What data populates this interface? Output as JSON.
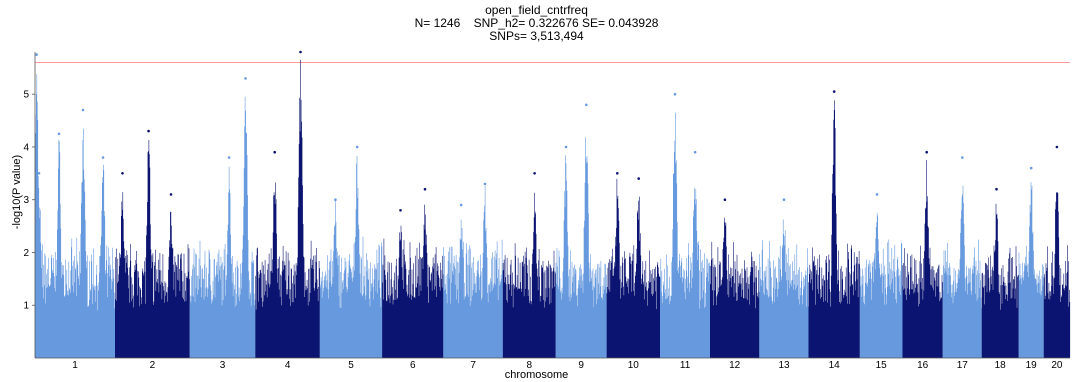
{
  "title": {
    "line1": "open_field_cntrfreq",
    "line2": "N= 1246    SNP_h2= 0.322676 SE= 0.043928",
    "line3": "SNPs= 3,513,494"
  },
  "colors": {
    "light": "#6699dd",
    "dark": "#0b1470",
    "threshold": "#ff9999"
  },
  "chart_data": {
    "type": "scatter",
    "subtype": "manhattan",
    "xlabel": "chromosome",
    "ylabel": "-log10(P value)",
    "ylim": [
      0,
      5.8
    ],
    "yticks": [
      1,
      2,
      3,
      4,
      5
    ],
    "threshold": 5.6,
    "grid": false,
    "legend": "none",
    "chromosomes": [
      {
        "label": "1",
        "size": 195,
        "color": "light",
        "peaks": [
          [
            0.02,
            5.75
          ],
          [
            0.05,
            3.5
          ],
          [
            0.3,
            4.25
          ],
          [
            0.6,
            4.7
          ],
          [
            0.85,
            3.8
          ]
        ]
      },
      {
        "label": "2",
        "size": 182,
        "color": "dark",
        "peaks": [
          [
            0.1,
            3.5
          ],
          [
            0.45,
            4.3
          ],
          [
            0.75,
            3.1
          ]
        ]
      },
      {
        "label": "",
        "size": 0,
        "color": "dark",
        "peaks": []
      },
      {
        "label": "3",
        "size": 160,
        "color": "light",
        "peaks": [
          [
            0.6,
            3.8
          ],
          [
            0.85,
            5.3
          ]
        ]
      },
      {
        "label": "4",
        "size": 157,
        "color": "dark",
        "peaks": [
          [
            0.3,
            3.9
          ],
          [
            0.7,
            5.8
          ]
        ]
      },
      {
        "label": "5",
        "size": 152,
        "color": "light",
        "peaks": [
          [
            0.25,
            3.0
          ],
          [
            0.6,
            4.0
          ]
        ]
      },
      {
        "label": "6",
        "size": 149,
        "color": "dark",
        "peaks": [
          [
            0.3,
            2.8
          ],
          [
            0.7,
            3.2
          ]
        ]
      },
      {
        "label": "7",
        "size": 145,
        "color": "light",
        "peaks": [
          [
            0.3,
            2.9
          ],
          [
            0.7,
            3.3
          ]
        ]
      },
      {
        "label": "8",
        "size": 129,
        "color": "dark",
        "peaks": [
          [
            0.6,
            3.5
          ]
        ]
      },
      {
        "label": "9",
        "size": 124,
        "color": "light",
        "peaks": [
          [
            0.2,
            4.0
          ],
          [
            0.6,
            4.8
          ]
        ]
      },
      {
        "label": "10",
        "size": 130,
        "color": "dark",
        "peaks": [
          [
            0.2,
            3.5
          ],
          [
            0.6,
            3.4
          ]
        ]
      },
      {
        "label": "11",
        "size": 122,
        "color": "light",
        "peaks": [
          [
            0.3,
            5.0
          ],
          [
            0.7,
            3.9
          ]
        ]
      },
      {
        "label": "12",
        "size": 120,
        "color": "dark",
        "peaks": [
          [
            0.3,
            3.0
          ]
        ]
      },
      {
        "label": "13",
        "size": 120,
        "color": "light",
        "peaks": [
          [
            0.5,
            3.0
          ]
        ]
      },
      {
        "label": "14",
        "size": 125,
        "color": "dark",
        "peaks": [
          [
            0.5,
            5.05
          ]
        ]
      },
      {
        "label": "15",
        "size": 104,
        "color": "light",
        "peaks": [
          [
            0.4,
            3.1
          ]
        ]
      },
      {
        "label": "16",
        "size": 98,
        "color": "dark",
        "peaks": [
          [
            0.6,
            3.9
          ]
        ]
      },
      {
        "label": "17",
        "size": 95,
        "color": "light",
        "peaks": [
          [
            0.5,
            3.8
          ]
        ]
      },
      {
        "label": "18",
        "size": 90,
        "color": "dark",
        "peaks": [
          [
            0.4,
            3.2
          ]
        ]
      },
      {
        "label": "19",
        "size": 61,
        "color": "light",
        "peaks": [
          [
            0.5,
            3.6
          ]
        ]
      },
      {
        "label": "20",
        "size": 64,
        "color": "dark",
        "peaks": [
          [
            0.5,
            4.0
          ]
        ]
      }
    ]
  }
}
